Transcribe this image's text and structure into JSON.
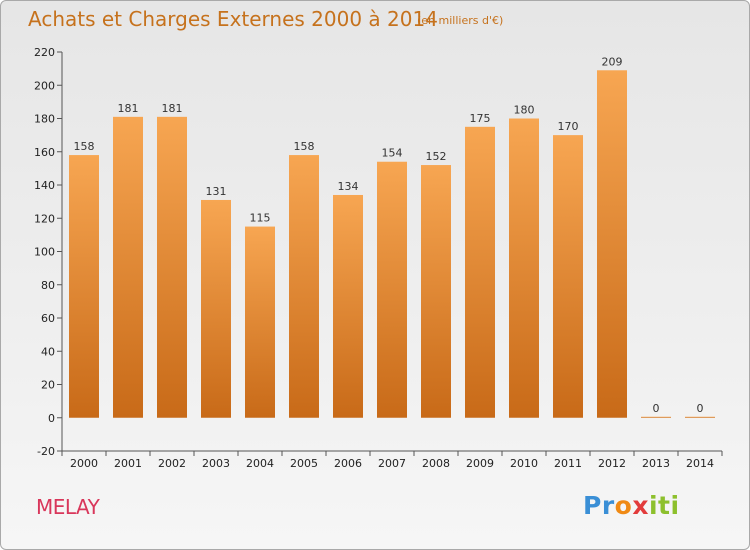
{
  "title": "Achats et Charges Externes 2000 à 2014",
  "subtitle": "(en milliers d'€)",
  "commune": "MELAY",
  "logo": {
    "p1": "Pr",
    "p2": "o",
    "p3": "x",
    "p4": "iti"
  },
  "colors": {
    "bar_top": "#f7a652",
    "bar_bottom": "#c86a18",
    "title": "#c6721d",
    "commune": "#d9375b"
  },
  "chart_data": {
    "type": "bar",
    "title": "Achats et Charges Externes 2000 à 2014",
    "subtitle": "(en milliers d'€)",
    "xlabel": "",
    "ylabel": "",
    "categories": [
      "2000",
      "2001",
      "2002",
      "2003",
      "2004",
      "2005",
      "2006",
      "2007",
      "2008",
      "2009",
      "2010",
      "2011",
      "2012",
      "2013",
      "2014"
    ],
    "values": [
      158,
      181,
      181,
      131,
      115,
      158,
      134,
      154,
      152,
      175,
      180,
      170,
      209,
      0,
      0
    ],
    "ylim": [
      -20,
      220
    ],
    "yticks": [
      -20,
      0,
      20,
      40,
      60,
      80,
      100,
      120,
      140,
      160,
      180,
      200,
      220
    ],
    "grid": false,
    "data_labels": true
  }
}
